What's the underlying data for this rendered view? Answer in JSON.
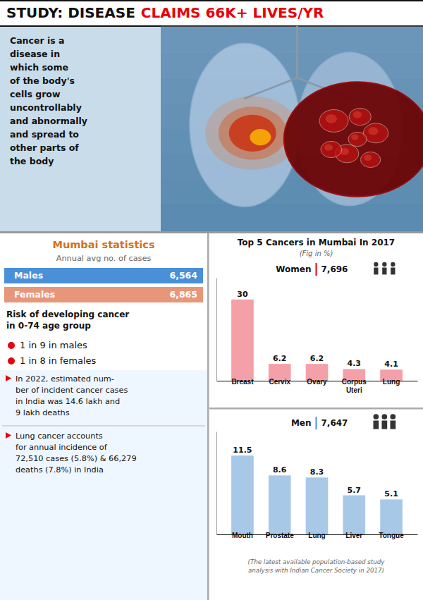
{
  "title": "STUDY: DISEASE",
  "subtitle": "CLAIMS 66K+ LIVES/YR",
  "annotations": [
    "Cancer is a\ndisease in\nwhich some\nof the body's\ncells grow\nuncontrollably\nand abnormally\nand spread to\nother parts of\nthe body",
    "Mumbai statistics",
    "Annual avg no. of cases",
    "Males",
    "6,564",
    "Females",
    "6,865",
    "Risk of developing cancer\nin 0-74 age group",
    "1 in 9 in males",
    "1 in 8 in females",
    "In 2022, estimated num-\nber of incident cancer cases\nin India was 14.6 lakh and\n9 lakh deaths",
    "Lung cancer accounts\nfor annual incidence of\n72,510 cases (5.8%) & 66,279\ndeaths (7.8%) in India"
  ],
  "chart_data": [
    {
      "type": "bar",
      "title": "Top 5 Cancers in Mumbai In 2017",
      "subtitle": "(Fig in %)",
      "annotations": [
        "Women",
        "7,696"
      ],
      "categories": [
        "Breast",
        "Cervix",
        "Ovary",
        "Corpus\nUteri",
        "Lung"
      ],
      "values": [
        30,
        6.2,
        6.2,
        4.3,
        4.1
      ],
      "color": "#f4a0a8",
      "ylim": [
        0,
        38
      ],
      "tick_labels": "x",
      "data_labels": true
    },
    {
      "type": "bar",
      "annotations": [
        "Men",
        "7,647",
        "(The latest available population-based study\nanalysis with Indian Cancer Society in 2017)"
      ],
      "categories": [
        "Mouth",
        "Prostate",
        "Lung",
        "Liver",
        "Tongue"
      ],
      "values": [
        11.5,
        8.6,
        8.3,
        5.7,
        5.1
      ],
      "color": "#a8c8e8",
      "ylim": [
        0,
        15
      ],
      "tick_labels": "x",
      "data_labels": true
    }
  ]
}
